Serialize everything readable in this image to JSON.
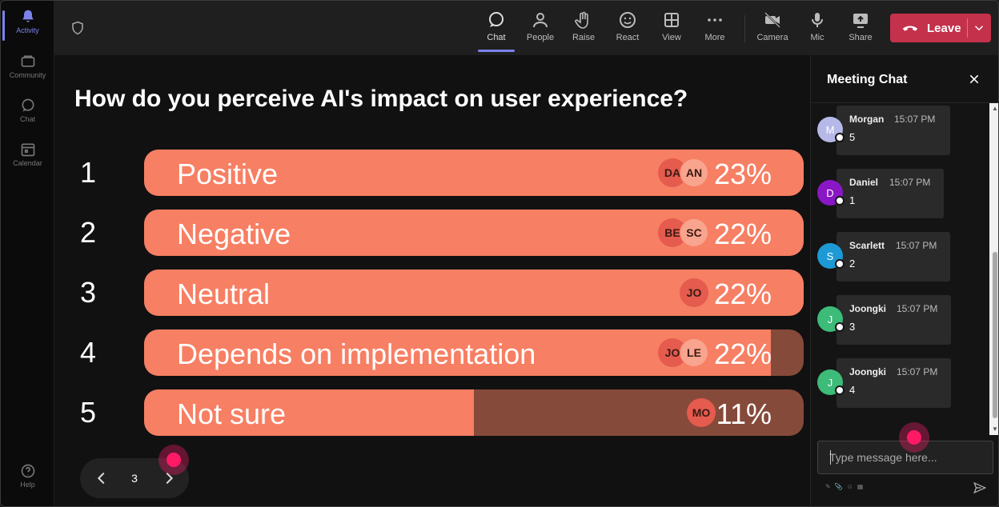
{
  "rail": {
    "items": [
      {
        "label": "Activity",
        "icon": "bell-icon"
      },
      {
        "label": "Community",
        "icon": "community-icon"
      },
      {
        "label": "Chat",
        "icon": "chat-icon"
      },
      {
        "label": "Calendar",
        "icon": "calendar-icon"
      }
    ],
    "help": {
      "label": "Help",
      "icon": "help-icon"
    }
  },
  "toolbar": {
    "chat": "Chat",
    "people": "People",
    "raise": "Raise",
    "react": "React",
    "view": "View",
    "more": "More",
    "camera": "Camera",
    "mic": "Mic",
    "share": "Share",
    "leave": "Leave"
  },
  "poll": {
    "question": "How do you perceive AI's impact on user experience?",
    "options": [
      {
        "number": "1",
        "label": "Positive",
        "percent": "23%",
        "fill": 100,
        "avatars": [
          "DA",
          "AN"
        ]
      },
      {
        "number": "2",
        "label": "Negative",
        "percent": "22%",
        "fill": 100,
        "avatars": [
          "BE",
          "SC"
        ]
      },
      {
        "number": "3",
        "label": "Neutral",
        "percent": "22%",
        "fill": 100,
        "avatars": [
          "JO"
        ]
      },
      {
        "number": "4",
        "label": "Depends on implementation",
        "percent": "22%",
        "fill": 95,
        "avatars": [
          "JO",
          "LE"
        ]
      },
      {
        "number": "5",
        "label": "Not sure",
        "percent": "11%",
        "fill": 50,
        "avatars": [
          "MO"
        ]
      }
    ],
    "page": "3"
  },
  "chat": {
    "title": "Meeting Chat",
    "messages": [
      {
        "initial": "M",
        "name": "Morgan",
        "time": "15:07 PM",
        "text": "5",
        "color": "#b6b9e8"
      },
      {
        "initial": "D",
        "name": "Daniel",
        "time": "15:07 PM",
        "text": "1",
        "color": "#8a17c6"
      },
      {
        "initial": "S",
        "name": "Scarlett",
        "time": "15:07 PM",
        "text": "2",
        "color": "#1d9ad6"
      },
      {
        "initial": "J",
        "name": "Joongki",
        "time": "15:07 PM",
        "text": "3",
        "color": "#3dbb78"
      },
      {
        "initial": "J",
        "name": "Joongki",
        "time": "15:07 PM",
        "text": "4",
        "color": "#3dbb78"
      }
    ],
    "placeholder": "Type message here..."
  },
  "colors": {
    "bar_fill": "#f77f63",
    "bar_track": "#864a3a",
    "leave": "#c4314b",
    "accent": "#7b83eb"
  }
}
